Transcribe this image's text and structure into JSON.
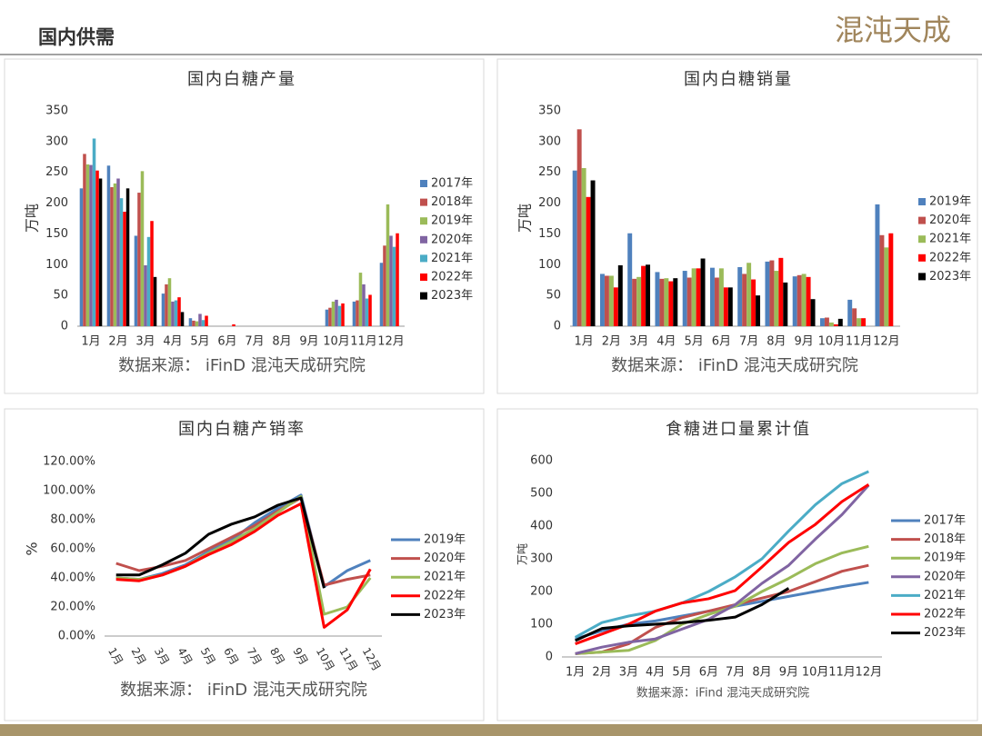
{
  "header": {
    "title": "国内供需",
    "logo": "混沌天成"
  },
  "chart_data": [
    {
      "type": "bar",
      "title": "国内白糖产量",
      "y_label": "万吨",
      "source": "数据来源： iFinD 混沌天成研究院",
      "categories": [
        "1月",
        "2月",
        "3月",
        "4月",
        "5月",
        "6月",
        "7月",
        "8月",
        "9月",
        "10月",
        "11月",
        "12月"
      ],
      "ylim": [
        0,
        350
      ],
      "yticks": [
        0,
        50,
        100,
        150,
        200,
        250,
        300,
        350
      ],
      "grid": false,
      "series": [
        {
          "name": "2017年",
          "color": "#4f81bd",
          "values": [
            224,
            261,
            147,
            53,
            13,
            0,
            0,
            0,
            0,
            27,
            40,
            103
          ]
        },
        {
          "name": "2018年",
          "color": "#c0504d",
          "values": [
            280,
            226,
            217,
            68,
            9,
            0,
            0,
            0,
            0,
            30,
            42,
            131
          ]
        },
        {
          "name": "2019年",
          "color": "#9bbb59",
          "values": [
            263,
            232,
            252,
            78,
            8,
            0,
            0,
            0,
            0,
            40,
            87,
            198
          ]
        },
        {
          "name": "2020年",
          "color": "#8064a2",
          "values": [
            262,
            240,
            99,
            40,
            20,
            0,
            0,
            0,
            0,
            43,
            68,
            147
          ]
        },
        {
          "name": "2021年",
          "color": "#4bacc6",
          "values": [
            305,
            208,
            145,
            42,
            10,
            0,
            0,
            0,
            0,
            33,
            45,
            129
          ]
        },
        {
          "name": "2022年",
          "color": "#ff0000",
          "values": [
            253,
            186,
            171,
            47,
            17,
            3,
            0,
            0,
            0,
            37,
            51,
            151
          ]
        },
        {
          "name": "2023年",
          "color": "#000000",
          "values": [
            240,
            224,
            80,
            23,
            null,
            null,
            null,
            null,
            null,
            null,
            null,
            null
          ]
        }
      ]
    },
    {
      "type": "bar",
      "title": "国内白糖销量",
      "y_label": "万吨",
      "source": "数据来源： iFinD 混沌天成研究院",
      "categories": [
        "1月",
        "2月",
        "3月",
        "4月",
        "5月",
        "6月",
        "7月",
        "8月",
        "9月",
        "10月",
        "11月",
        "12月"
      ],
      "ylim": [
        0,
        350
      ],
      "yticks": [
        0,
        50,
        100,
        150,
        200,
        250,
        300,
        350
      ],
      "grid": false,
      "series": [
        {
          "name": "2019年",
          "color": "#4f81bd",
          "values": [
            253,
            85,
            151,
            88,
            90,
            95,
            96,
            105,
            81,
            13,
            43,
            198
          ]
        },
        {
          "name": "2020年",
          "color": "#c0504d",
          "values": [
            320,
            82,
            77,
            77,
            79,
            79,
            85,
            107,
            83,
            14,
            29,
            148
          ]
        },
        {
          "name": "2021年",
          "color": "#9bbb59",
          "values": [
            257,
            82,
            80,
            78,
            94,
            94,
            103,
            90,
            85,
            6,
            13,
            128
          ]
        },
        {
          "name": "2022年",
          "color": "#ff0000",
          "values": [
            210,
            63,
            98,
            73,
            94,
            63,
            76,
            111,
            80,
            3,
            13,
            151
          ]
        },
        {
          "name": "2023年",
          "color": "#000000",
          "values": [
            237,
            99,
            100,
            78,
            110,
            63,
            50,
            71,
            44,
            12,
            null,
            null
          ]
        }
      ]
    },
    {
      "type": "line",
      "title": "国内白糖产销率",
      "y_label": "%",
      "source": "数据来源： iFinD 混沌天成研究院",
      "categories": [
        "1月",
        "2月",
        "3月",
        "4月",
        "5月",
        "6月",
        "7月",
        "8月",
        "9月",
        "10月",
        "11月",
        "12月"
      ],
      "ylim": [
        0,
        120
      ],
      "yticks": [
        {
          "value": 0,
          "label": "0.00%"
        },
        {
          "value": 20,
          "label": "20.00%"
        },
        {
          "value": 40,
          "label": "40.00%"
        },
        {
          "value": 60,
          "label": "60.00%"
        },
        {
          "value": 80,
          "label": "80.00%"
        },
        {
          "value": 100,
          "label": "100.00%"
        },
        {
          "value": 120,
          "label": "120.00%"
        }
      ],
      "grid": false,
      "rotate_x_labels": true,
      "series": [
        {
          "name": "2019年",
          "color": "#4f81bd",
          "values": [
            40,
            39,
            43,
            49,
            58,
            66,
            78,
            88,
            97,
            34,
            45,
            52
          ]
        },
        {
          "name": "2020年",
          "color": "#c0504d",
          "values": [
            50,
            45,
            48,
            52,
            60,
            68,
            76,
            86,
            95,
            35,
            39,
            42
          ]
        },
        {
          "name": "2021年",
          "color": "#9bbb59",
          "values": [
            40,
            39,
            42,
            48,
            57,
            65,
            74,
            85,
            96,
            15,
            20,
            40
          ]
        },
        {
          "name": "2022年",
          "color": "#ff0000",
          "values": [
            39,
            38,
            42,
            48,
            56,
            63,
            72,
            83,
            91,
            6,
            18,
            46
          ]
        },
        {
          "name": "2023年",
          "color": "#000000",
          "values": [
            42,
            42,
            49,
            57,
            70,
            77,
            82,
            90,
            95,
            33,
            null,
            null
          ]
        }
      ]
    },
    {
      "type": "line",
      "title": "食糖进口量累计值",
      "y_label": "万吨",
      "source": "数据来源：iFind  混沌天成研究院",
      "categories": [
        "1月",
        "2月",
        "3月",
        "4月",
        "5月",
        "6月",
        "7月",
        "8月",
        "9月",
        "10月",
        "11月",
        "12月"
      ],
      "ylim": [
        0,
        600
      ],
      "yticks": [
        0,
        100,
        200,
        300,
        400,
        500,
        600
      ],
      "grid": false,
      "series": [
        {
          "name": "2017年",
          "color": "#4f81bd",
          "values": [
            55,
            80,
            100,
            110,
            125,
            140,
            155,
            170,
            185,
            200,
            215,
            228
          ]
        },
        {
          "name": "2018年",
          "color": "#c0504d",
          "values": [
            10,
            15,
            40,
            90,
            120,
            140,
            160,
            180,
            200,
            230,
            262,
            280
          ]
        },
        {
          "name": "2019年",
          "color": "#9bbb59",
          "values": [
            10,
            15,
            20,
            50,
            100,
            130,
            155,
            200,
            240,
            285,
            318,
            338
          ]
        },
        {
          "name": "2020年",
          "color": "#8064a2",
          "values": [
            10,
            30,
            45,
            55,
            85,
            115,
            160,
            225,
            280,
            360,
            435,
            525
          ]
        },
        {
          "name": "2021年",
          "color": "#4bacc6",
          "values": [
            60,
            105,
            125,
            140,
            165,
            200,
            245,
            300,
            385,
            465,
            530,
            567
          ]
        },
        {
          "name": "2022年",
          "color": "#ff0000",
          "values": [
            40,
            70,
            100,
            140,
            165,
            178,
            203,
            275,
            350,
            405,
            475,
            527
          ]
        },
        {
          "name": "2023年",
          "color": "#000000",
          "values": [
            50,
            87,
            95,
            100,
            105,
            112,
            122,
            160,
            210,
            null,
            null,
            null
          ]
        }
      ]
    }
  ]
}
